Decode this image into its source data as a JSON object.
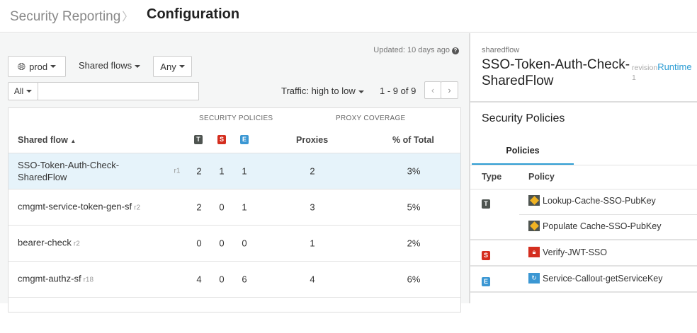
{
  "header": {
    "breadcrumb": "Security Reporting",
    "title": "Configuration"
  },
  "toolbar": {
    "updated": "Updated: 10 days ago",
    "environment": "prod",
    "type_filter": "Shared flows",
    "any_filter": "Any",
    "search_scope": "All",
    "search_value": "",
    "sort": "Traffic: high to low",
    "pagination": "1 - 9 of 9"
  },
  "table": {
    "group_security": "SECURITY POLICIES",
    "group_coverage": "PROXY COVERAGE",
    "col_name": "Shared flow",
    "col_t": "T",
    "col_s": "S",
    "col_e": "E",
    "col_proxies": "Proxies",
    "col_pct": "% of Total",
    "rows": [
      {
        "name": "SSO-Token-Auth-Check-SharedFlow",
        "rev": "r1",
        "t": "2",
        "s": "1",
        "e": "1",
        "proxies": "2",
        "pct": "3%"
      },
      {
        "name": "cmgmt-service-token-gen-sf",
        "rev": "r2",
        "t": "2",
        "s": "0",
        "e": "1",
        "proxies": "3",
        "pct": "5%"
      },
      {
        "name": "bearer-check",
        "rev": "r2",
        "t": "0",
        "s": "0",
        "e": "0",
        "proxies": "1",
        "pct": "2%"
      },
      {
        "name": "cmgmt-authz-sf",
        "rev": "r18",
        "t": "4",
        "s": "0",
        "e": "6",
        "proxies": "4",
        "pct": "6%"
      }
    ]
  },
  "detail": {
    "kind": "sharedflow",
    "name": "SSO-Token-Auth-Check-SharedFlow",
    "revision_label": "revision",
    "revision": "1",
    "runtime": "Runtime",
    "section": "Security Policies",
    "tab": "Policies",
    "col_type": "Type",
    "col_policy": "Policy",
    "types": {
      "t": "T",
      "s": "S",
      "e": "E"
    },
    "policies": [
      "Lookup-Cache-SSO-PubKey",
      "Populate Cache-SSO-PubKey",
      "Verify-JWT-SSO",
      "Service-Callout-getServiceKey"
    ]
  },
  "colors": {
    "accent": "#2e9dd4",
    "t": "#4e5450",
    "s": "#d42e1f",
    "e": "#3b97d3",
    "selected_row": "#e6f3fa"
  }
}
